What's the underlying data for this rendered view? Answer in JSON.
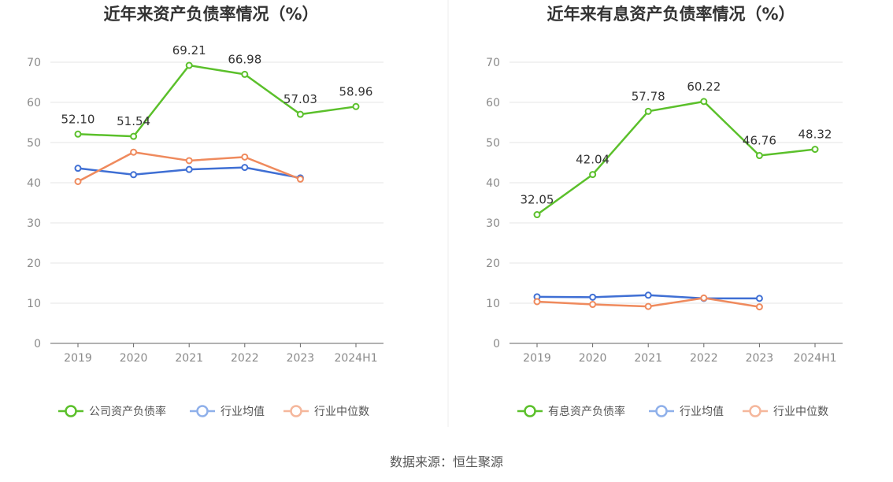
{
  "source_text": "数据来源：恒生聚源",
  "colors": {
    "company": "#5bc02b",
    "avg": "#3f6fd4",
    "median": "#ef8a5d",
    "grid": "#e6e6e6",
    "axis": "#666666"
  },
  "chart_data": [
    {
      "type": "line",
      "title": "近年来资产负债率情况（%）",
      "categories": [
        "2019",
        "2020",
        "2021",
        "2022",
        "2023",
        "2024H1"
      ],
      "ylim": [
        0,
        70
      ],
      "yticks": [
        0,
        10,
        20,
        30,
        40,
        50,
        60,
        70
      ],
      "grid": true,
      "legend_position": "bottom",
      "series": [
        {
          "name": "公司资产负债率",
          "color": "#5bc02b",
          "labels": true,
          "values": [
            52.1,
            51.54,
            69.21,
            66.98,
            57.03,
            58.96
          ],
          "value_labels": [
            "52.10",
            "51.54",
            "69.21",
            "66.98",
            "57.03",
            "58.96"
          ]
        },
        {
          "name": "行业均值",
          "color": "#3f6fd4",
          "labels": false,
          "values": [
            43.6,
            42.0,
            43.3,
            43.8,
            41.2,
            null
          ]
        },
        {
          "name": "行业中位数",
          "color": "#ef8a5d",
          "labels": false,
          "values": [
            40.3,
            47.6,
            45.5,
            46.4,
            40.9,
            null
          ]
        }
      ]
    },
    {
      "type": "line",
      "title": "近年来有息资产负债率情况（%）",
      "categories": [
        "2019",
        "2020",
        "2021",
        "2022",
        "2023",
        "2024H1"
      ],
      "ylim": [
        0,
        70
      ],
      "yticks": [
        0,
        10,
        20,
        30,
        40,
        50,
        60,
        70
      ],
      "grid": true,
      "legend_position": "bottom",
      "series": [
        {
          "name": "有息资产负债率",
          "color": "#5bc02b",
          "labels": true,
          "values": [
            32.05,
            42.04,
            57.78,
            60.22,
            46.76,
            48.32
          ],
          "value_labels": [
            "32.05",
            "42.04",
            "57.78",
            "60.22",
            "46.76",
            "48.32"
          ]
        },
        {
          "name": "行业均值",
          "color": "#3f6fd4",
          "labels": false,
          "values": [
            11.6,
            11.5,
            12.0,
            11.2,
            11.2,
            null
          ]
        },
        {
          "name": "行业中位数",
          "color": "#ef8a5d",
          "labels": false,
          "values": [
            10.4,
            9.7,
            9.2,
            11.3,
            9.1,
            null
          ]
        }
      ]
    }
  ]
}
